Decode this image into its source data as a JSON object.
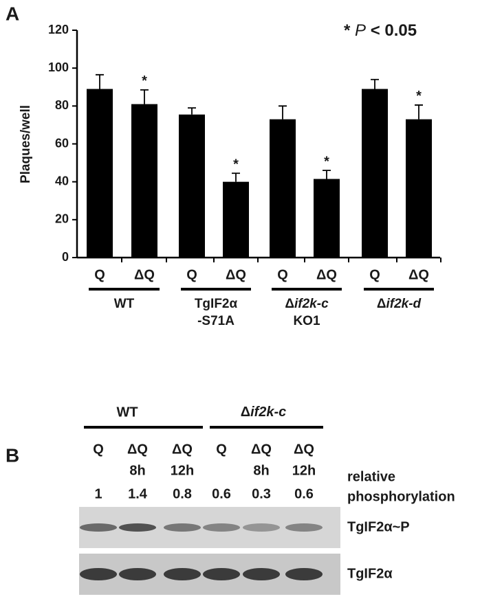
{
  "chart_data": {
    "type": "bar",
    "panel_label": "A",
    "y_label": "Plaques/well",
    "categories": [
      "Q",
      "ΔQ",
      "Q",
      "ΔQ",
      "Q",
      "ΔQ",
      "Q",
      "ΔQ"
    ],
    "values": [
      89,
      81,
      75.5,
      40,
      73,
      41.5,
      89,
      73
    ],
    "errors": [
      7.5,
      7.5,
      3.5,
      4.5,
      7,
      4.5,
      5,
      7.5
    ],
    "significance": [
      null,
      "*",
      null,
      "*",
      null,
      "*",
      null,
      "*"
    ],
    "color": "#000000",
    "groups": [
      {
        "lines": [
          "WT"
        ]
      },
      {
        "lines": [
          "TgIF2α",
          "-S71A"
        ]
      },
      {
        "lines": [
          "Δif2k-c",
          "KO1"
        ]
      },
      {
        "lines": [
          "Δif2k-d"
        ]
      }
    ],
    "note": {
      "prefix": "*",
      "italic": "P",
      "suffix": "< 0.05"
    },
    "ylim": [
      0,
      120
    ],
    "yticks": [
      0,
      20,
      40,
      60,
      80,
      100,
      120
    ],
    "grid": false
  },
  "panel_b": {
    "panel_label": "B",
    "groups": [
      "WT",
      "Δif2k-c"
    ],
    "lanes": [
      {
        "treatment": "Q",
        "time": null
      },
      {
        "treatment": "ΔQ",
        "time": "8h"
      },
      {
        "treatment": "ΔQ",
        "time": "12h"
      },
      {
        "treatment": "Q",
        "time": null
      },
      {
        "treatment": "ΔQ",
        "time": "8h"
      },
      {
        "treatment": "ΔQ",
        "time": "12h"
      }
    ],
    "relative_phosphorylation": {
      "label_lines": [
        "relative",
        "phosphorylation"
      ],
      "values": [
        1,
        1.4,
        0.8,
        0.6,
        0.3,
        0.6
      ]
    },
    "blots": [
      "TgIF2α~P",
      "TgIF2α"
    ]
  }
}
